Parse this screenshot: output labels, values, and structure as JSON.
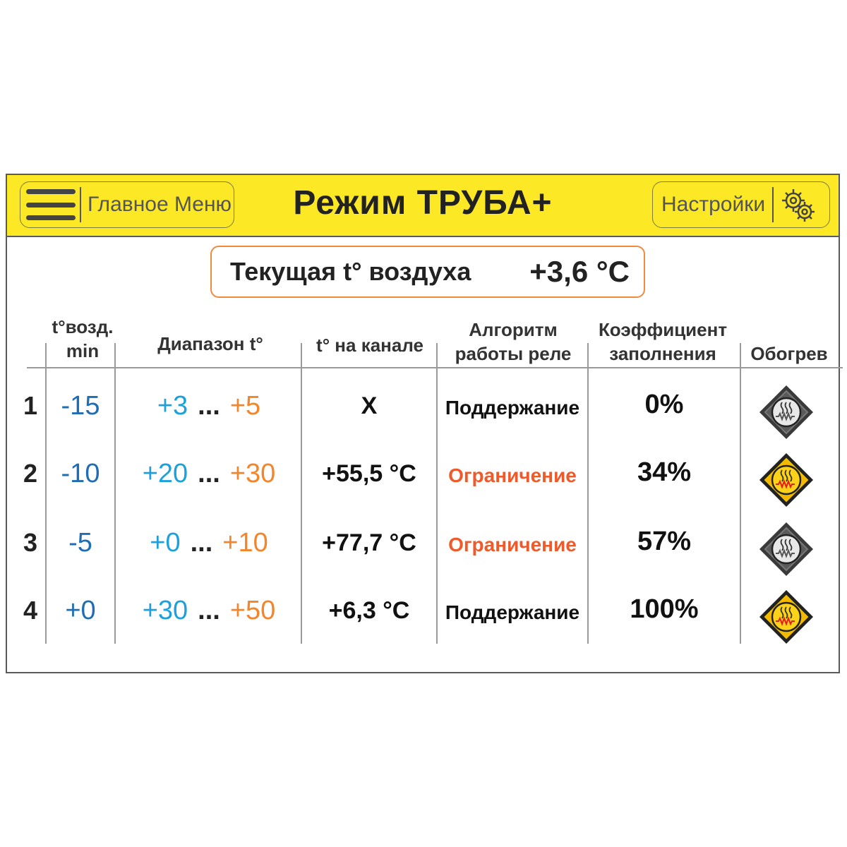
{
  "header": {
    "menu_label": "Главное Меню",
    "title": "Режим ТРУБА+",
    "settings_label": "Настройки"
  },
  "air": {
    "label": "Текущая t° воздуха",
    "value": "+3,6 °C"
  },
  "columns": {
    "min_line1": "t°возд.",
    "min_line2": "min",
    "range": "Диапазон t°",
    "channel": "t° на канале",
    "alg_line1": "Алгоритм",
    "alg_line2": "работы реле",
    "coef_line1": "Коэффициент",
    "coef_line2": "заполнения",
    "heat": "Обогрев"
  },
  "rows": [
    {
      "n": "1",
      "min": "-15",
      "from": "+3",
      "dots": "...",
      "to": "+5",
      "channel": "X",
      "alg": "Поддержание",
      "alg_state": "keep",
      "coef": "0%",
      "heat": "off"
    },
    {
      "n": "2",
      "min": "-10",
      "from": "+20",
      "dots": "...",
      "to": "+30",
      "channel": "+55,5 °C",
      "alg": "Ограничение",
      "alg_state": "limit",
      "coef": "34%",
      "heat": "on"
    },
    {
      "n": "3",
      "min": "-5",
      "from": "+0",
      "dots": "...",
      "to": "+10",
      "channel": "+77,7 °C",
      "alg": "Ограничение",
      "alg_state": "limit",
      "coef": "57%",
      "heat": "off"
    },
    {
      "n": "4",
      "min": "+0",
      "from": "+30",
      "dots": "...",
      "to": "+50",
      "channel": "+6,3 °C",
      "alg": "Поддержание",
      "alg_state": "keep",
      "coef": "100%",
      "heat": "on"
    }
  ],
  "colors": {
    "topbar": "#fde826",
    "min_blue": "#1f6db5",
    "range_from": "#1da1dc",
    "range_to": "#f3862b",
    "limit": "#ef5a2a",
    "heat_on": "#f5b800",
    "heat_off": "#5a5a5a"
  },
  "icons": {
    "menu": "hamburger-icon",
    "settings": "gears-icon",
    "heater": "heater-diamond-icon"
  }
}
